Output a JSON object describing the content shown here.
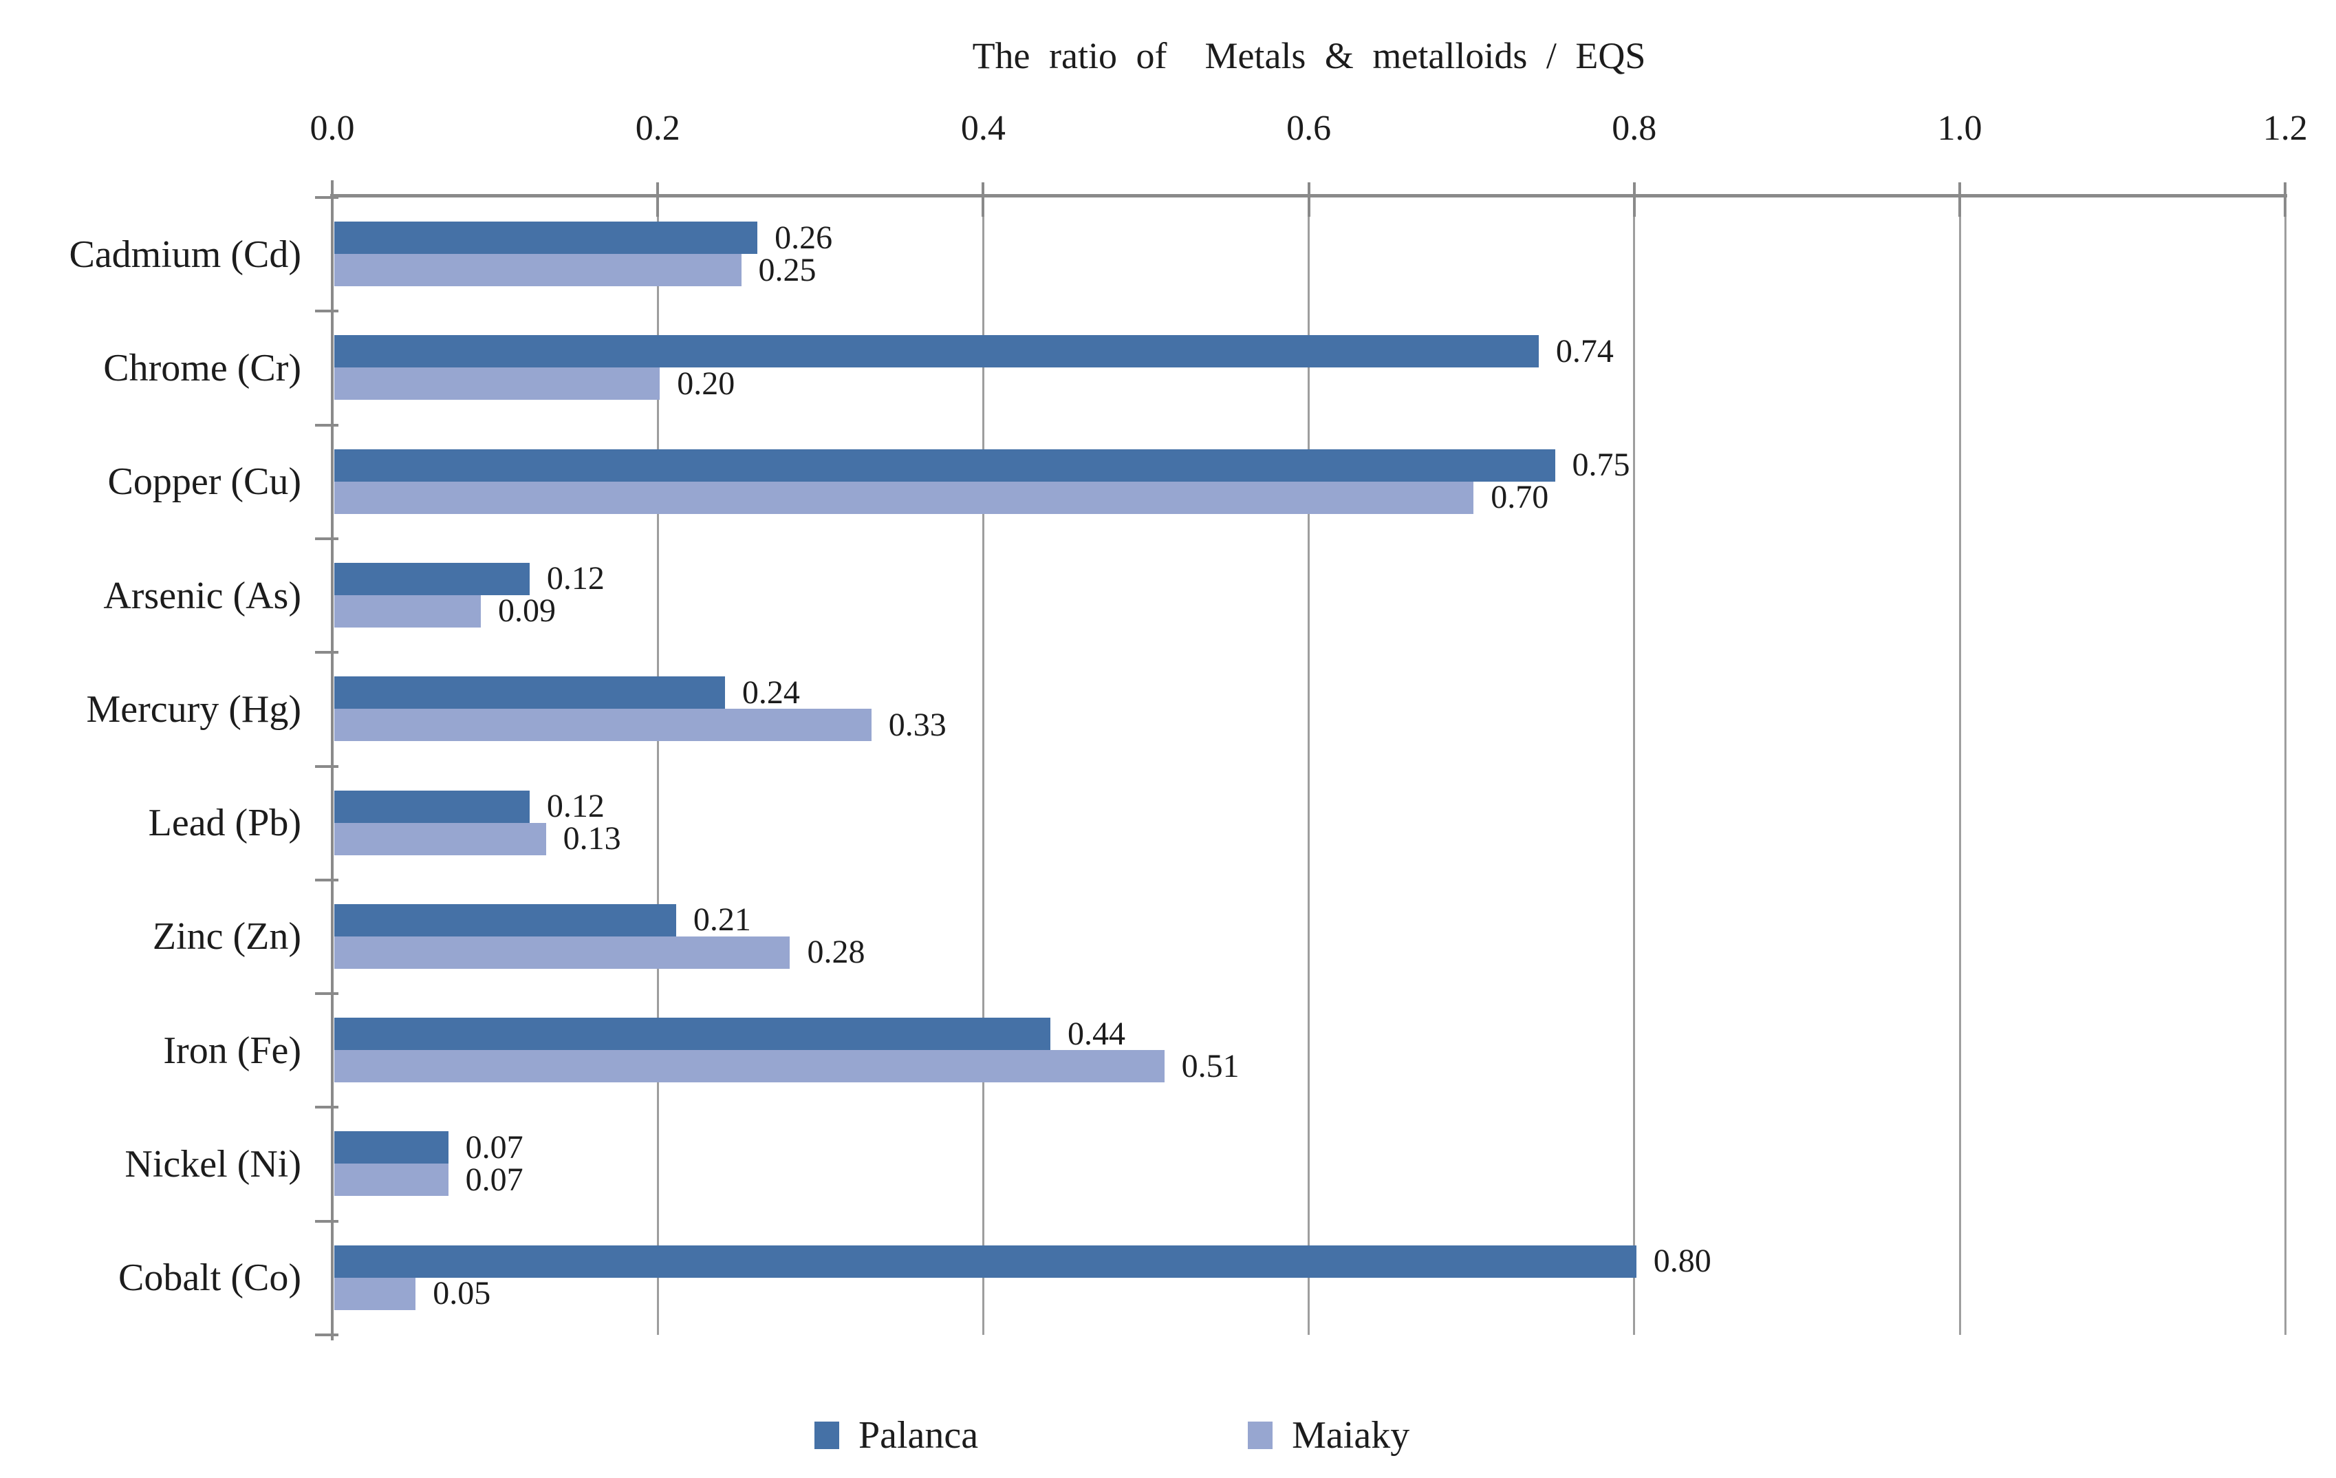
{
  "chart_data": {
    "type": "bar",
    "orientation": "horizontal",
    "title": "The ratio of  Metals & metalloids / EQS",
    "categories": [
      "Cadmium (Cd)",
      "Chrome (Cr)",
      "Copper (Cu)",
      "Arsenic (As)",
      "Mercury (Hg)",
      "Lead (Pb)",
      "Zinc (Zn)",
      "Iron (Fe)",
      "Nickel (Ni)",
      "Cobalt (Co)"
    ],
    "series": [
      {
        "name": "Palanca",
        "color": "#4571A6",
        "values": [
          0.26,
          0.74,
          0.75,
          0.12,
          0.24,
          0.12,
          0.21,
          0.44,
          0.07,
          0.8
        ]
      },
      {
        "name": "Maiaky",
        "color": "#97A6D0",
        "values": [
          0.25,
          0.2,
          0.7,
          0.09,
          0.33,
          0.13,
          0.28,
          0.51,
          0.07,
          0.05
        ]
      }
    ],
    "xlim": [
      0,
      1.2
    ],
    "x_tick_step": 0.2,
    "x_ticks": [
      "0.0",
      "0.2",
      "0.4",
      "0.6",
      "0.8",
      "1.0",
      "1.2"
    ],
    "value_label_decimals": 2,
    "grid": true,
    "legend_position": "bottom",
    "axis_color": "#8a8a8a",
    "gridline_color": "#9e9e9e",
    "text_color": "#1c1c1c"
  }
}
